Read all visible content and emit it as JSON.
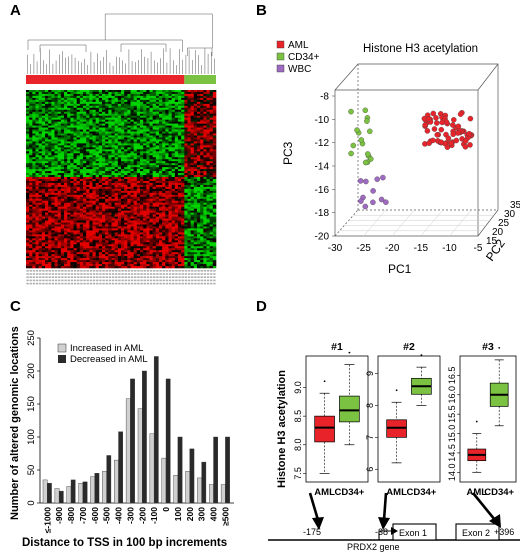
{
  "panels": {
    "a": "A",
    "b": "B",
    "c": "C",
    "d": "D"
  },
  "panel_b": {
    "legend": [
      "AML",
      "CD34+",
      "WBC"
    ],
    "colors": {
      "AML": "#e8242a",
      "CD34+": "#7cc242",
      "WBC": "#9f6ac2"
    },
    "chart_data": {
      "type": "scatter",
      "title": "Histone H3 acetylation",
      "xlabel": "PC1",
      "ylabel": "PC2",
      "zlabel": "PC3",
      "pc1_ticks": [
        "-30",
        "-25",
        "-20",
        "-15",
        "-10",
        "-5"
      ],
      "pc2_ticks": [
        "15",
        "20",
        "25",
        "30",
        "35"
      ],
      "pc3_ticks": [
        "-8",
        "-10",
        "-12",
        "-14",
        "-16",
        "-18",
        "-20"
      ],
      "series": [
        {
          "name": "AML",
          "count": 70
        },
        {
          "name": "CD34+",
          "count": 16
        },
        {
          "name": "WBC",
          "count": 11
        }
      ]
    }
  },
  "panel_c": {
    "chart_data": {
      "type": "bar",
      "ylabel": "Number of altered genomic locations",
      "xlabel": "Distance to TSS in 100 bp increments",
      "categories": [
        "≤-1000",
        "-900",
        "-800",
        "-700",
        "-600",
        "-500",
        "-400",
        "-300",
        "-200",
        "-100",
        "0",
        "100",
        "200",
        "300",
        "400",
        "≥500"
      ],
      "ylim": [
        0,
        250
      ],
      "yticks": [
        "0",
        "50",
        "100",
        "150",
        "200",
        "250"
      ],
      "series": [
        {
          "name": "Increased in AML",
          "color": "#d0d0d0",
          "values": [
            35,
            22,
            25,
            30,
            40,
            48,
            65,
            158,
            143,
            105,
            68,
            42,
            48,
            38,
            28,
            28
          ]
        },
        {
          "name": "Decreased in AML",
          "color": "#2a2a2a",
          "values": [
            30,
            18,
            35,
            32,
            45,
            72,
            108,
            188,
            200,
            222,
            188,
            100,
            82,
            62,
            100,
            100
          ]
        }
      ]
    }
  },
  "panel_d": {
    "ylabel": "Histone H3 acetylation",
    "boxes": [
      {
        "title": "#1",
        "labels": [
          "AML",
          "CD34+"
        ],
        "ticks": [
          "7.5",
          "8.0",
          "8.5",
          "9.0"
        ]
      },
      {
        "title": "#2",
        "labels": [
          "AML",
          "CD34+"
        ],
        "ticks": [
          "6",
          "7",
          "8",
          "9"
        ]
      },
      {
        "title": "#3",
        "labels": [
          "AML",
          "CD34+"
        ],
        "ticks": [
          "14.0",
          "14.5",
          "15.0",
          "15.5",
          "16.0",
          "16.5"
        ]
      }
    ],
    "chart_data": {
      "type": "box",
      "series": [
        {
          "name": "#1 AML",
          "min": 7.5,
          "q1": 8.05,
          "median": 8.3,
          "q3": 8.5,
          "max": 8.9
        },
        {
          "name": "#1 CD34+",
          "min": 8.0,
          "q1": 8.4,
          "median": 8.6,
          "q3": 8.85,
          "max": 9.4
        },
        {
          "name": "#2 AML",
          "min": 6.2,
          "q1": 7.0,
          "median": 7.3,
          "q3": 7.55,
          "max": 8.1
        },
        {
          "name": "#2 CD34+",
          "min": 8.0,
          "q1": 8.35,
          "median": 8.6,
          "q3": 8.85,
          "max": 9.2
        },
        {
          "name": "#3 AML",
          "min": 14.0,
          "q1": 14.3,
          "median": 14.45,
          "q3": 14.6,
          "max": 15.0
        },
        {
          "name": "#3 CD34+",
          "min": 15.2,
          "q1": 15.7,
          "median": 16.0,
          "q3": 16.3,
          "max": 16.9
        }
      ]
    },
    "gene": {
      "positions": [
        "-175",
        "-38",
        "+396"
      ],
      "gene_label": "PRDX2 gene",
      "exons": [
        "Exon 1",
        "Exon 2"
      ]
    }
  }
}
